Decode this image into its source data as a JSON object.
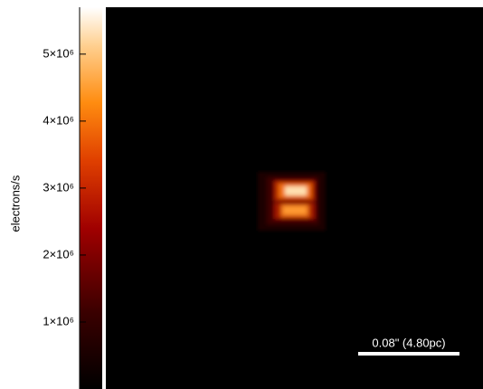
{
  "chart_data": {
    "type": "heatmap",
    "colorbar_label": "electrons/s",
    "zlim": [
      0,
      5700000
    ],
    "zticks": [
      {
        "value": 1000000,
        "label": "1×10⁶"
      },
      {
        "value": 2000000,
        "label": "2×10⁶"
      },
      {
        "value": 3000000,
        "label": "3×10⁶"
      },
      {
        "value": 4000000,
        "label": "4×10⁶"
      },
      {
        "value": 5000000,
        "label": "5×10⁶"
      }
    ],
    "scale_bar_label": "0.08\" (4.80pc)"
  }
}
